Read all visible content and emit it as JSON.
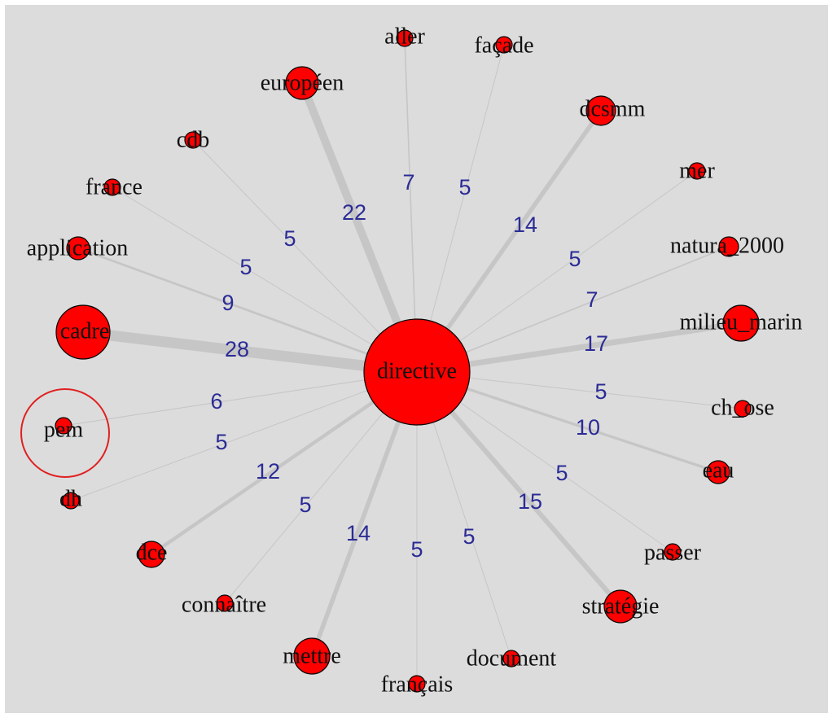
{
  "nodes": [
    {
      "label": "directive"
    },
    {
      "label": "aller"
    },
    {
      "label": "façade"
    },
    {
      "label": "européen"
    },
    {
      "label": "dcsmm"
    },
    {
      "label": "cdb"
    },
    {
      "label": "mer"
    },
    {
      "label": "france"
    },
    {
      "label": "natura_2000"
    },
    {
      "label": "application"
    },
    {
      "label": "milieu_marin"
    },
    {
      "label": "cadre"
    },
    {
      "label": "ch_ose"
    },
    {
      "label": "pem"
    },
    {
      "label": "eau"
    },
    {
      "label": "dh"
    },
    {
      "label": "passer"
    },
    {
      "label": "dce"
    },
    {
      "label": "stratégie"
    },
    {
      "label": "connaître"
    },
    {
      "label": "document"
    },
    {
      "label": "mettre"
    },
    {
      "label": "français"
    }
  ],
  "edges": [
    {
      "weight": 7
    },
    {
      "weight": 5
    },
    {
      "weight": 22
    },
    {
      "weight": 14
    },
    {
      "weight": 5
    },
    {
      "weight": 5
    },
    {
      "weight": 5
    },
    {
      "weight": 7
    },
    {
      "weight": 9
    },
    {
      "weight": 17
    },
    {
      "weight": 28
    },
    {
      "weight": 5
    },
    {
      "weight": 6
    },
    {
      "weight": 10
    },
    {
      "weight": 5
    },
    {
      "weight": 5
    },
    {
      "weight": 12
    },
    {
      "weight": 15
    },
    {
      "weight": 5
    },
    {
      "weight": 5
    },
    {
      "weight": 14
    },
    {
      "weight": 5
    }
  ]
}
